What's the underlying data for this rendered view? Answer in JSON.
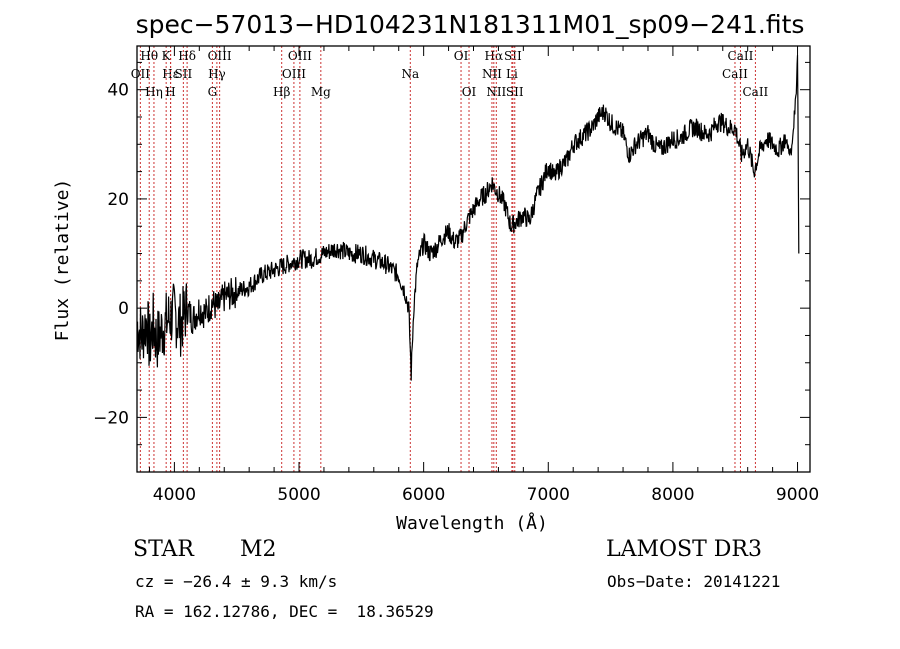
{
  "chart_data": {
    "type": "line",
    "title": "spec−57013−HD104231N181311M01_sp09−241.fits",
    "xlabel": "Wavelength (Å)",
    "ylabel": "Flux (relative)",
    "xlim": [
      3700,
      9100
    ],
    "ylim": [
      -30,
      48
    ],
    "x_ticks": [
      4000,
      5000,
      6000,
      7000,
      8000,
      9000
    ],
    "y_ticks": [
      -20,
      0,
      20,
      40
    ],
    "y_tick_labels": [
      "−20",
      "0",
      "20",
      "40"
    ],
    "series": [
      {
        "name": "flux",
        "x": [
          3700,
          3740,
          3780,
          3800,
          3830,
          3860,
          3900,
          3950,
          4000,
          4050,
          4100,
          4150,
          4200,
          4250,
          4300,
          4350,
          4400,
          4500,
          4600,
          4700,
          4800,
          4900,
          5000,
          5100,
          5200,
          5300,
          5400,
          5500,
          5600,
          5700,
          5800,
          5850,
          5880,
          5900,
          5920,
          5950,
          6000,
          6050,
          6100,
          6150,
          6200,
          6250,
          6300,
          6350,
          6400,
          6450,
          6500,
          6550,
          6570,
          6600,
          6650,
          6700,
          6750,
          6800,
          6850,
          6900,
          6950,
          7000,
          7050,
          7100,
          7150,
          7200,
          7250,
          7300,
          7350,
          7400,
          7450,
          7500,
          7550,
          7600,
          7650,
          7700,
          7750,
          7800,
          7850,
          7900,
          7950,
          8000,
          8050,
          8100,
          8150,
          8200,
          8250,
          8300,
          8350,
          8400,
          8450,
          8500,
          8550,
          8600,
          8650,
          8700,
          8750,
          8800,
          8850,
          8900,
          8950,
          8970,
          8990,
          9000,
          9010
        ],
        "values": [
          -3,
          -5,
          -2,
          -7,
          -3,
          -6,
          -4,
          -2,
          -1,
          -3,
          0,
          -2,
          0,
          -1,
          1,
          0,
          2,
          3,
          4,
          6,
          7,
          8,
          9,
          9,
          10,
          11,
          10,
          10,
          9,
          8,
          6,
          3,
          0,
          -12,
          0,
          8,
          12,
          10,
          11,
          13,
          14,
          12,
          13,
          16,
          18,
          20,
          21,
          23,
          22,
          21,
          19,
          15,
          16,
          17,
          16,
          20,
          23,
          26,
          24,
          26,
          27,
          30,
          31,
          32,
          33,
          35,
          36,
          34,
          33,
          32,
          28,
          30,
          31,
          32,
          30,
          29,
          30,
          31,
          31,
          32,
          33,
          33,
          32,
          32,
          34,
          34,
          33,
          33,
          28,
          30,
          25,
          29,
          31,
          30,
          29,
          31,
          28,
          34,
          40,
          47,
          10
        ]
      }
    ],
    "spectral_lines": [
      {
        "label": "Hθ",
        "wavelength": 3798,
        "row": 1
      },
      {
        "label": "OII",
        "wavelength": 3727,
        "row": 2
      },
      {
        "label": "Hη",
        "wavelength": 3836,
        "row": 3
      },
      {
        "label": "K",
        "wavelength": 3934,
        "row": 1
      },
      {
        "label": "Hε",
        "wavelength": 3970,
        "row": 2
      },
      {
        "label": "H",
        "wavelength": 3969,
        "row": 3
      },
      {
        "label": "Hδ",
        "wavelength": 4102,
        "row": 1
      },
      {
        "label": "SII",
        "wavelength": 4072,
        "row": 2
      },
      {
        "label": "OIII",
        "wavelength": 4363,
        "row": 1
      },
      {
        "label": "Hγ",
        "wavelength": 4341,
        "row": 2
      },
      {
        "label": "G",
        "wavelength": 4305,
        "row": 3
      },
      {
        "label": "Hβ",
        "wavelength": 4861,
        "row": 3
      },
      {
        "label": "OIII",
        "wavelength": 5007,
        "row": 1
      },
      {
        "label": "OIII",
        "wavelength": 4959,
        "row": 2
      },
      {
        "label": "Mg",
        "wavelength": 5175,
        "row": 3
      },
      {
        "label": "Na",
        "wavelength": 5893,
        "row": 2
      },
      {
        "label": "OI",
        "wavelength": 6300,
        "row": 1
      },
      {
        "label": "OI",
        "wavelength": 6364,
        "row": 3
      },
      {
        "label": "Hα",
        "wavelength": 6563,
        "row": 1
      },
      {
        "label": "NII",
        "wavelength": 6548,
        "row": 2
      },
      {
        "label": "NII",
        "wavelength": 6583,
        "row": 3
      },
      {
        "label": "SII",
        "wavelength": 6716,
        "row": 1
      },
      {
        "label": "Li",
        "wavelength": 6708,
        "row": 2
      },
      {
        "label": "SII",
        "wavelength": 6731,
        "row": 3
      },
      {
        "label": "CaII",
        "wavelength": 8542,
        "row": 1
      },
      {
        "label": "CaII",
        "wavelength": 8498,
        "row": 2
      },
      {
        "label": "CaII",
        "wavelength": 8662,
        "row": 3
      }
    ],
    "line_color": "#000000",
    "marker_color": "#cc3333"
  },
  "info": {
    "object_class": "STAR",
    "subclass": "M2",
    "survey": "LAMOST DR3",
    "cz_line": "cz = −26.4 ± 9.3 km/s",
    "obs_date_line": "Obs−Date: 20141221",
    "coords_line": "RA = 162.12786, DEC =  18.36529"
  }
}
